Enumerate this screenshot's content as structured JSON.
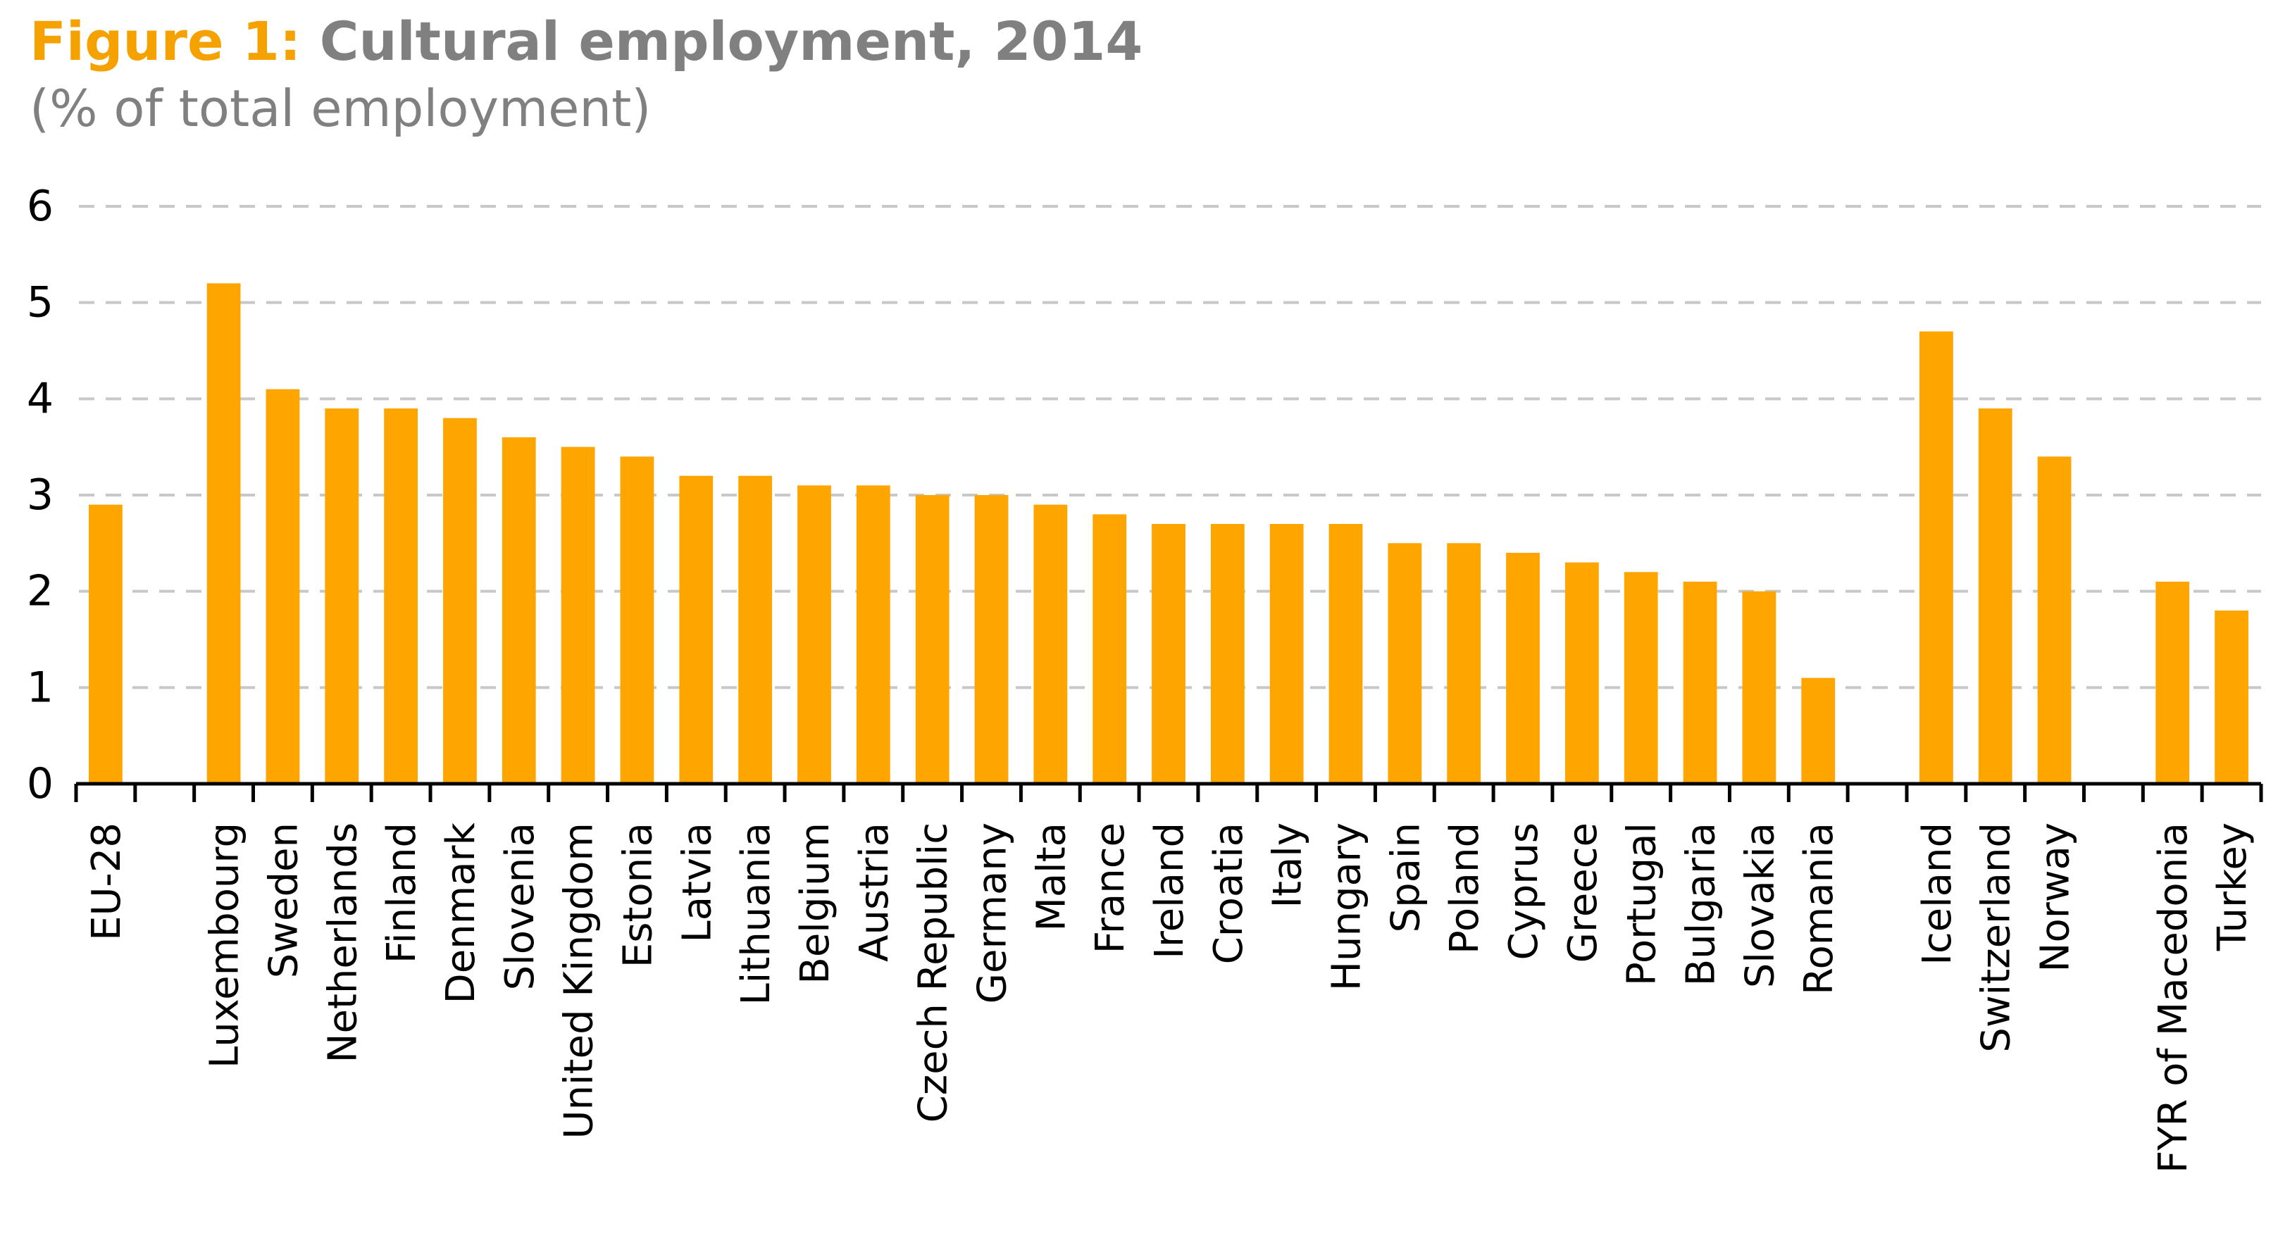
{
  "header": {
    "figure_label": "Figure 1:",
    "title": "Cultural employment, 2014",
    "subtitle": "(% of total employment)"
  },
  "colors": {
    "bar": "#ffa500",
    "figure_label": "#f5a200",
    "title_text": "#808080",
    "gridline": "#c8c8c8",
    "axis": "#000000"
  },
  "chart_data": {
    "type": "bar",
    "title": "Cultural employment, 2014",
    "subtitle": "(% of total employment)",
    "xlabel": "",
    "ylabel": "",
    "ylim": [
      0,
      6
    ],
    "yticks": [
      0,
      1,
      2,
      3,
      4,
      5,
      6
    ],
    "grid": "dashed horizontal",
    "legend": "none",
    "categories": [
      "EU-28",
      "",
      "Luxembourg",
      "Sweden",
      "Netherlands",
      "Finland",
      "Denmark",
      "Slovenia",
      "United Kingdom",
      "Estonia",
      "Latvia",
      "Lithuania",
      "Belgium",
      "Austria",
      "Czech Republic",
      "Germany",
      "Malta",
      "France",
      "Ireland",
      "Croatia",
      "Italy",
      "Hungary",
      "Spain",
      "Poland",
      "Cyprus",
      "Greece",
      "Portugal",
      "Bulgaria",
      "Slovakia",
      "Romania",
      "",
      "Iceland",
      "Switzerland",
      "Norway",
      "",
      "FYR of Macedonia",
      "Turkey"
    ],
    "values": [
      2.9,
      null,
      5.2,
      4.1,
      3.9,
      3.9,
      3.8,
      3.6,
      3.5,
      3.4,
      3.2,
      3.2,
      3.1,
      3.1,
      3.0,
      3.0,
      2.9,
      2.8,
      2.7,
      2.7,
      2.7,
      2.7,
      2.5,
      2.5,
      2.4,
      2.3,
      2.2,
      2.1,
      2.0,
      1.1,
      null,
      4.7,
      3.9,
      3.4,
      null,
      2.1,
      1.8
    ]
  }
}
